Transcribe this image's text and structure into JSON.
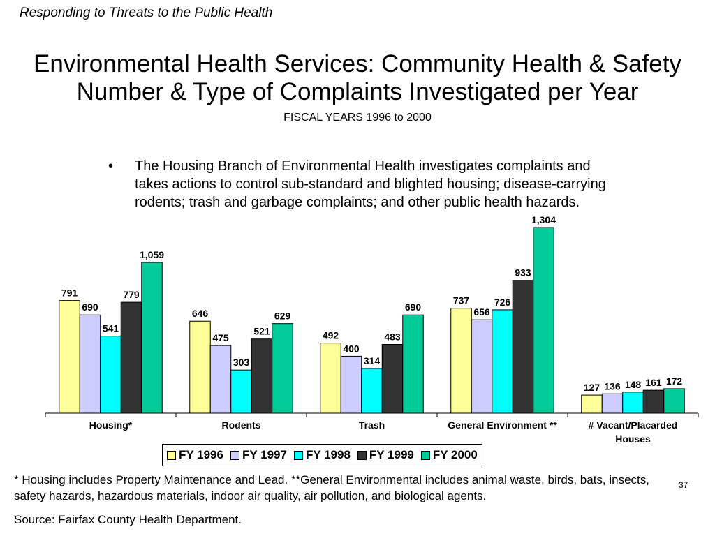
{
  "header": {
    "section": "Responding to Threats to the Public Health"
  },
  "slide": {
    "title_line1": "Environmental Health Services: Community Health & Safety",
    "title_line2": "Number & Type of Complaints Investigated per Year",
    "subtitle": "FISCAL YEARS 1996 to 2000",
    "bullet": "The Housing Branch of Environmental Health investigates complaints and takes actions to control sub-standard and blighted housing; disease-carrying rodents; trash and garbage complaints; and other public health hazards.",
    "footnote": "* Housing includes Property Maintenance and Lead.  **General Environmental includes animal waste, birds, bats, insects, safety hazards, hazardous materials, indoor air quality, air pollution, and biological agents.",
    "page_number": "37",
    "source": "Source:  Fairfax County Health Department."
  },
  "chart_data": {
    "type": "bar",
    "categories": [
      [
        "Housing*"
      ],
      [
        "Rodents"
      ],
      [
        "Trash"
      ],
      [
        "General Environment **"
      ],
      [
        "# Vacant/Placarded",
        "Houses"
      ]
    ],
    "series": [
      {
        "name": "FY 1996",
        "color": "#FFFF99",
        "values": [
          791,
          646,
          492,
          737,
          127
        ],
        "labels": [
          "791",
          "646",
          "492",
          "737",
          "127"
        ]
      },
      {
        "name": "FY 1997",
        "color": "#CCCCFF",
        "values": [
          690,
          475,
          400,
          656,
          136
        ],
        "labels": [
          "690",
          "475",
          "400",
          "656",
          "136"
        ]
      },
      {
        "name": "FY 1998",
        "color": "#00FFFF",
        "values": [
          541,
          303,
          314,
          726,
          148
        ],
        "labels": [
          "541",
          "303",
          "314",
          "726",
          "148"
        ]
      },
      {
        "name": "FY 1999",
        "color": "#333333",
        "values": [
          779,
          521,
          483,
          933,
          161
        ],
        "labels": [
          "779",
          "521",
          "483",
          "933",
          "161"
        ]
      },
      {
        "name": "FY 2000",
        "color": "#00CC99",
        "values": [
          1059,
          629,
          690,
          1304,
          172
        ],
        "labels": [
          "1,059",
          "629",
          "690",
          "1,304",
          "172"
        ]
      }
    ],
    "ylim": [
      0,
      1304
    ],
    "grid": false,
    "legend_position": "bottom"
  }
}
